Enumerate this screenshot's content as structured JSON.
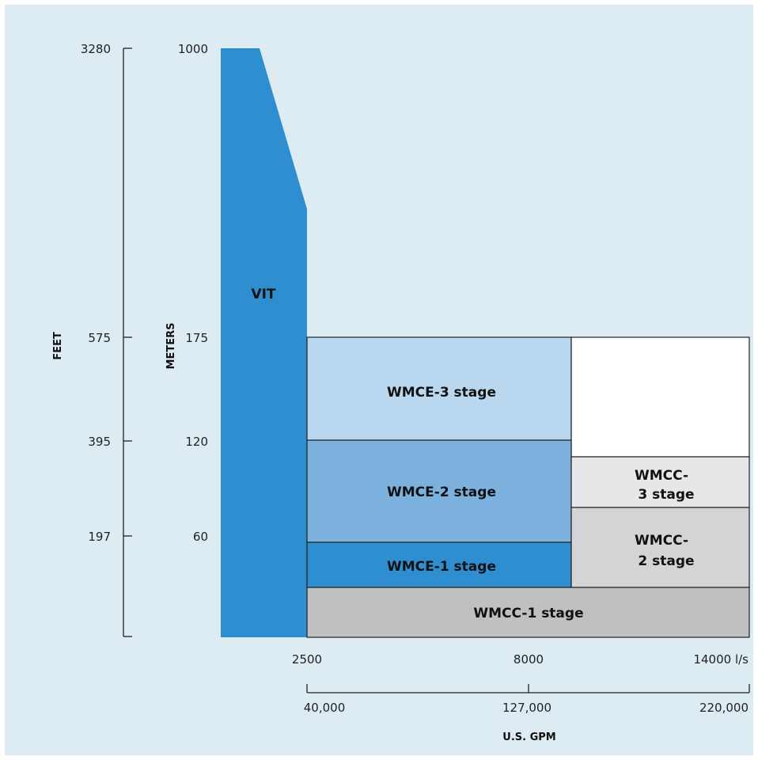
{
  "colors": {
    "background": "#ddebf3",
    "vit": "#2f8ecf",
    "wmce3": "#b9d8f0",
    "wmce2": "#7cb1de",
    "wmce1": "#2f8ecf",
    "wmcc3": "#e6e7e8",
    "wmcc2": "#d3d4d5",
    "wmcc1": "#bfc0c1",
    "empty": "#ffffff",
    "stroke": "#222222"
  },
  "axes": {
    "feet": {
      "title": "FEET",
      "ticks": [
        "3280",
        "575",
        "395",
        "197"
      ]
    },
    "meters": {
      "title": "METERS",
      "ticks": [
        "1000",
        "175",
        "120",
        "60"
      ]
    },
    "flow_ls": {
      "ticks": [
        "2500",
        "8000",
        "14000 l/s"
      ]
    },
    "flow_gpm": {
      "title": "U.S. GPM",
      "ticks": [
        "40,000",
        "127,000",
        "220,000"
      ]
    }
  },
  "chart_data": {
    "type": "area",
    "x_unit": "l/s",
    "y_unit": "m",
    "regions": [
      {
        "label": "VIT",
        "max_flow": 2500,
        "max_head": 1000
      },
      {
        "label": "WMCE-3 stage",
        "flow_range": [
          2500,
          8000
        ],
        "head_range": [
          120,
          175
        ]
      },
      {
        "label": "WMCE-2 stage",
        "flow_range": [
          2500,
          8000
        ],
        "head_range": [
          60,
          120
        ]
      },
      {
        "label": "WMCE-1 stage",
        "flow_range": [
          2500,
          8000
        ],
        "head_range": [
          0,
          60
        ]
      },
      {
        "label": "WMCC-3 stage",
        "flow_range": [
          8000,
          14000
        ]
      },
      {
        "label": "WMCC-2 stage",
        "flow_range": [
          8000,
          14000
        ]
      },
      {
        "label": "WMCC-1 stage",
        "flow_range": [
          2500,
          14000
        ]
      }
    ]
  },
  "labels": {
    "vit": "VIT",
    "wmce3": "WMCE-3 stage",
    "wmce2": "WMCE-2 stage",
    "wmce1": "WMCE-1 stage",
    "wmcc3_line1": "WMCC-",
    "wmcc3_line2": "3 stage",
    "wmcc2_line1": "WMCC-",
    "wmcc2_line2": "2 stage",
    "wmcc1": "WMCC-1 stage"
  }
}
